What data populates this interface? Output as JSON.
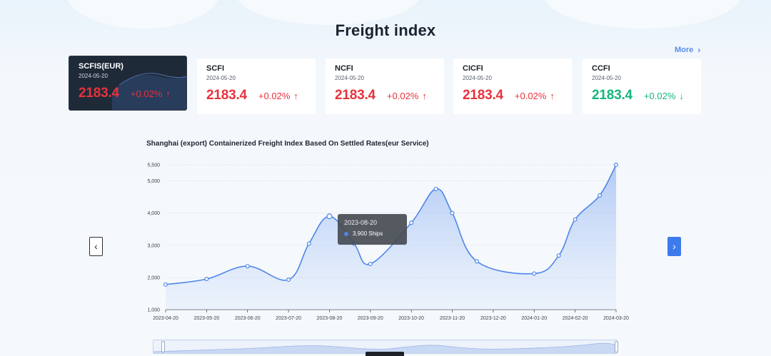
{
  "page": {
    "title": "Freight index",
    "more_label": "More"
  },
  "colors": {
    "up": "#e8313d",
    "down": "#13b77b",
    "accent": "#3d7bec",
    "line": "#4f86e8"
  },
  "cards": [
    {
      "name": "SCFIS(EUR)",
      "date": "2024-05-20",
      "value": "2183.4",
      "change": "+0.02%",
      "direction": "up",
      "active": true
    },
    {
      "name": "SCFI",
      "date": "2024-05-20",
      "value": "2183.4",
      "change": "+0.02%",
      "direction": "up",
      "active": false
    },
    {
      "name": "NCFI",
      "date": "2024-05-20",
      "value": "2183.4",
      "change": "+0.02%",
      "direction": "up",
      "active": false
    },
    {
      "name": "CICFI",
      "date": "2024-05-20",
      "value": "2183.4",
      "change": "+0.02%",
      "direction": "up",
      "active": false
    },
    {
      "name": "CCFI",
      "date": "2024-05-20",
      "value": "2183.4",
      "change": "+0.02%",
      "direction": "down",
      "active": false
    }
  ],
  "tooltip": {
    "date": "2023-08-20",
    "value_label": "3,900 Ships"
  },
  "chart_data": {
    "type": "area",
    "title": "Shanghai (export) Containerized Freight Index Based On Settled Rates(eur Service)",
    "xlabel": "",
    "ylabel": "",
    "ylim": [
      1000,
      5500
    ],
    "yticks": [
      1000,
      2000,
      3000,
      4000,
      5000,
      5500
    ],
    "ytick_labels": [
      "1,000",
      "2,000",
      "3,000",
      "4,000",
      "5,000",
      "5,500"
    ],
    "categories": [
      "2023-04-20",
      "2023-05-20",
      "2023-06-20",
      "2023-07-20",
      "2023-08-20",
      "2023-09-20",
      "2023-10-20",
      "2023-11-20",
      "2023-12-20",
      "2024-01-20",
      "2024-02-20",
      "2024-03-20"
    ],
    "grid": true,
    "legend": "none",
    "series": [
      {
        "points": [
          {
            "x": "2023-04-20",
            "y": 1780
          },
          {
            "x": "2023-05-20",
            "y": 1950
          },
          {
            "x": "2023-06-20",
            "y": 2350
          },
          {
            "x": "2023-07-20",
            "y": 1930
          },
          {
            "x": "2023-07-20 (2)",
            "y": 3050
          },
          {
            "x": "2023-08-20",
            "y": 3900
          },
          {
            "x": "2023-08-20 (2)",
            "y": 3050
          },
          {
            "x": "2023-09-20",
            "y": 2420
          },
          {
            "x": "2023-10-20",
            "y": 3700
          },
          {
            "x": "2023-10-20 (2)",
            "y": 4750
          },
          {
            "x": "2023-11-20",
            "y": 4000
          },
          {
            "x": "2023-11-20 (2)",
            "y": 2500
          },
          {
            "x": "2024-01-20",
            "y": 2120
          },
          {
            "x": "2024-01-20 (2)",
            "y": 2680
          },
          {
            "x": "2024-02-20",
            "y": 3800
          },
          {
            "x": "2024-02-20 (2)",
            "y": 4550
          },
          {
            "x": "2024-03-20",
            "y": 5500
          }
        ],
        "x_positions": [
          0,
          1,
          2,
          3,
          3.5,
          4,
          4.6,
          5,
          6,
          6.6,
          7,
          7.6,
          9,
          9.6,
          10,
          10.6,
          11
        ]
      }
    ]
  }
}
